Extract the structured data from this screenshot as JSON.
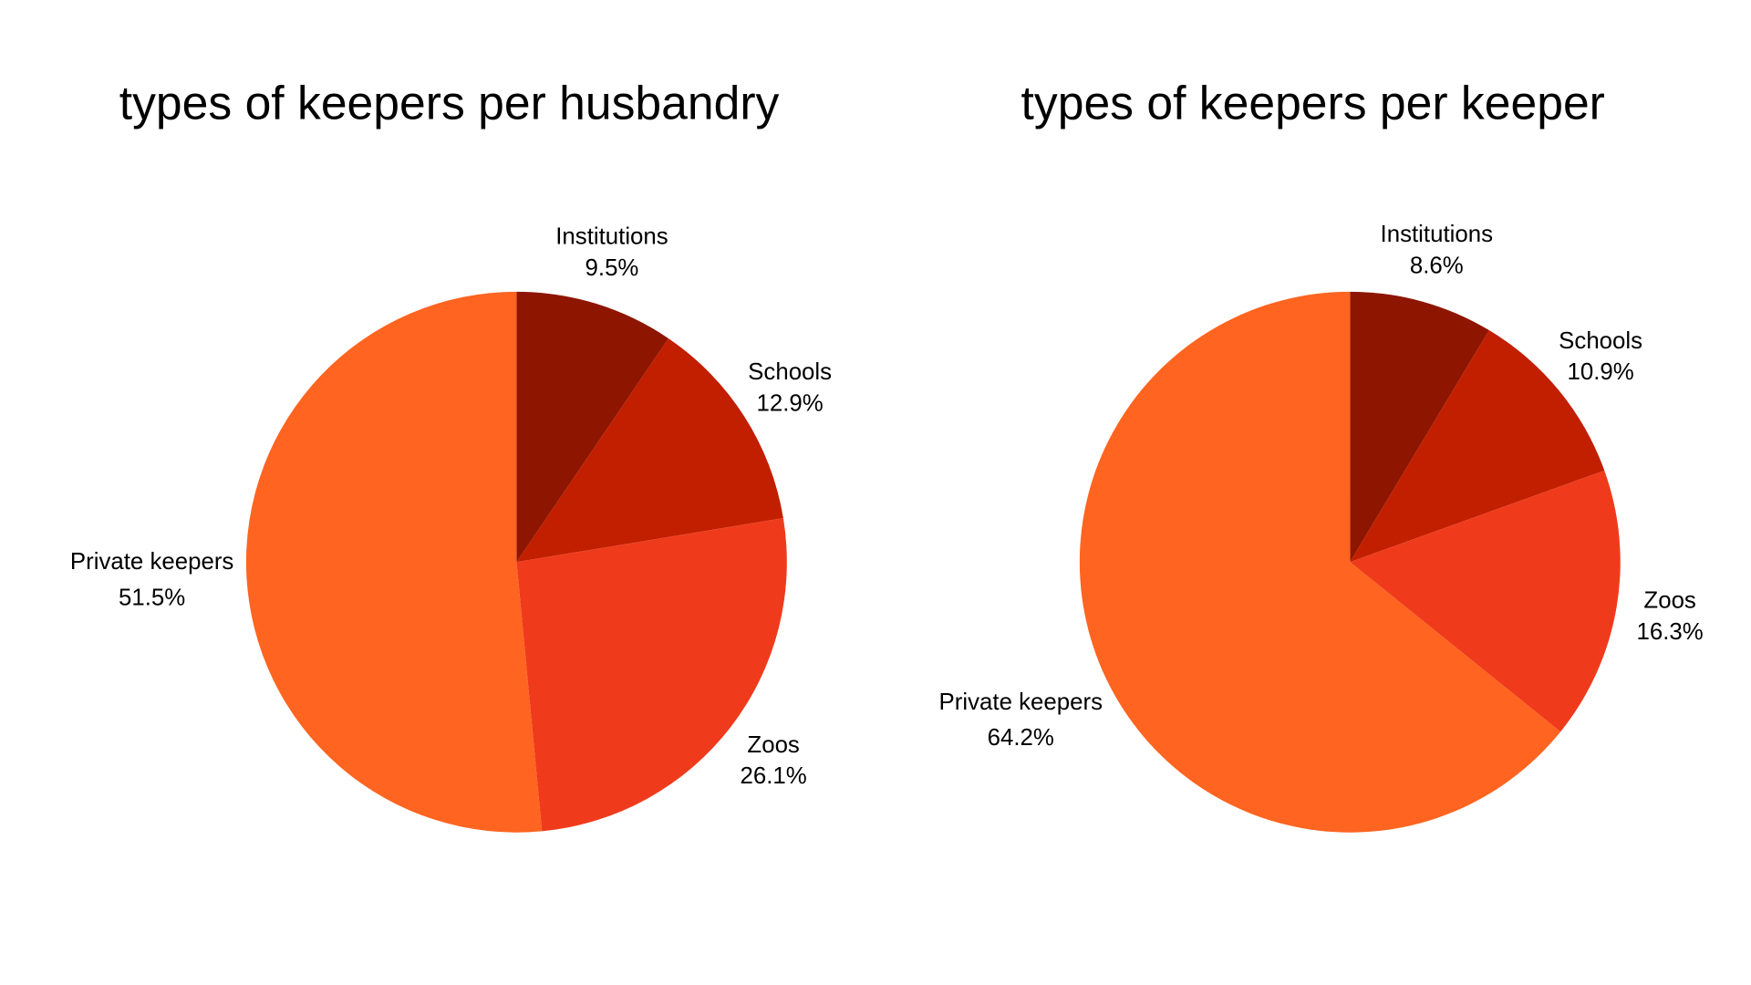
{
  "chart_data": [
    {
      "type": "pie",
      "title": "types of keepers per husbandry",
      "start_angle": "top",
      "direction": "clockwise",
      "slices": [
        {
          "label": "Institutions",
          "value": 9.5,
          "pct_label": "9.5%",
          "color": "#8e1600"
        },
        {
          "label": "Schools",
          "value": 12.9,
          "pct_label": "12.9%",
          "color": "#c11f00"
        },
        {
          "label": "Zoos",
          "value": 26.1,
          "pct_label": "26.1%",
          "color": "#ef3b1c"
        },
        {
          "label": "Private keepers",
          "value": 51.5,
          "pct_label": "51.5%",
          "color": "#ff6420"
        }
      ]
    },
    {
      "type": "pie",
      "title": "types of keepers per keeper",
      "start_angle": "top",
      "direction": "clockwise",
      "slices": [
        {
          "label": "Institutions",
          "value": 8.6,
          "pct_label": "8.6%",
          "color": "#8e1600"
        },
        {
          "label": "Schools",
          "value": 10.9,
          "pct_label": "10.9%",
          "color": "#c11f00"
        },
        {
          "label": "Zoos",
          "value": 16.3,
          "pct_label": "16.3%",
          "color": "#ef3b1c"
        },
        {
          "label": "Private keepers",
          "value": 64.2,
          "pct_label": "64.2%",
          "color": "#ff6420"
        }
      ]
    }
  ]
}
